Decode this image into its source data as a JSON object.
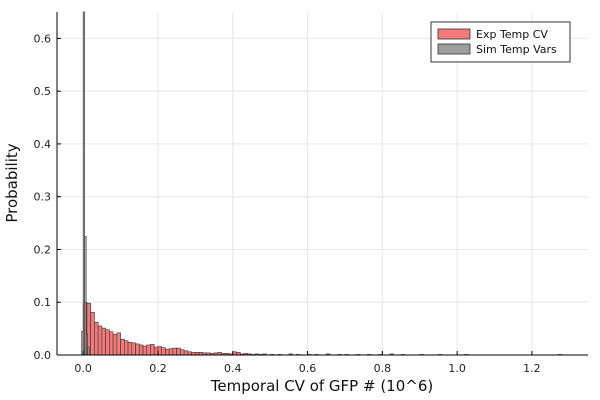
{
  "chart_data": {
    "type": "bar",
    "title": "",
    "xlabel": "Temporal CV of GFP # (10^6)",
    "ylabel": "Probability",
    "xlim": [
      -0.07,
      1.35
    ],
    "ylim": [
      0,
      0.65
    ],
    "xticks": [
      0.0,
      0.2,
      0.4,
      0.6,
      0.8,
      1.0,
      1.2
    ],
    "xtick_labels": [
      "0.0",
      "0.2",
      "0.4",
      "0.6",
      "0.8",
      "1.0",
      "1.2"
    ],
    "yticks": [
      0.0,
      0.1,
      0.2,
      0.3,
      0.4,
      0.5,
      0.6
    ],
    "ytick_labels": [
      "0.0",
      "0.1",
      "0.2",
      "0.3",
      "0.4",
      "0.5",
      "0.6"
    ],
    "grid": true,
    "legend_position": "top-right",
    "bin_width": 0.01,
    "series": [
      {
        "name": "Exp Temp CV",
        "color": "#f47a7a",
        "bin_starts": [
          0.0,
          0.01,
          0.02,
          0.03,
          0.04,
          0.05,
          0.06,
          0.07,
          0.08,
          0.09,
          0.1,
          0.11,
          0.12,
          0.13,
          0.14,
          0.15,
          0.16,
          0.17,
          0.18,
          0.19,
          0.2,
          0.21,
          0.22,
          0.23,
          0.24,
          0.25,
          0.26,
          0.27,
          0.28,
          0.29,
          0.3,
          0.31,
          0.32,
          0.33,
          0.34,
          0.35,
          0.36,
          0.37,
          0.38,
          0.39,
          0.4,
          0.41,
          0.42,
          0.43,
          0.44,
          0.45,
          0.46,
          0.47,
          0.48,
          0.5,
          0.52,
          0.55,
          0.57,
          0.6,
          0.62,
          0.65,
          0.68,
          0.7,
          0.73,
          0.76,
          0.79,
          0.82,
          0.85,
          0.9,
          0.95,
          1.02,
          1.27
        ],
        "values": [
          0.1,
          0.098,
          0.081,
          0.062,
          0.055,
          0.051,
          0.048,
          0.044,
          0.039,
          0.042,
          0.03,
          0.027,
          0.024,
          0.023,
          0.021,
          0.019,
          0.017,
          0.019,
          0.02,
          0.015,
          0.016,
          0.014,
          0.011,
          0.012,
          0.013,
          0.013,
          0.01,
          0.008,
          0.006,
          0.005,
          0.005,
          0.005,
          0.004,
          0.004,
          0.003,
          0.004,
          0.005,
          0.003,
          0.003,
          0.002,
          0.006,
          0.005,
          0.002,
          0.003,
          0.002,
          0.001,
          0.002,
          0.001,
          0.002,
          0.001,
          0.001,
          0.002,
          0.001,
          0.001,
          0.001,
          0.002,
          0.001,
          0.001,
          0.001,
          0.001,
          0.001,
          0.002,
          0.001,
          0.001,
          0.001,
          0.001,
          0.001
        ]
      },
      {
        "name": "Sim Temp Vars",
        "color": "#9e9e9e",
        "bin_starts": [
          -0.004,
          0.0,
          0.004,
          0.008,
          0.012
        ],
        "bin_width": 0.004,
        "values": [
          0.045,
          0.65,
          0.225,
          0.04,
          0.015
        ]
      }
    ]
  }
}
